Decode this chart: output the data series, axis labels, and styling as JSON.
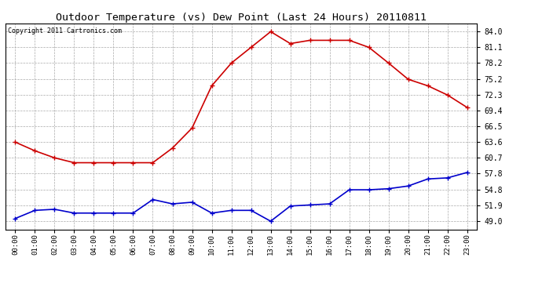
{
  "title": "Outdoor Temperature (vs) Dew Point (Last 24 Hours) 20110811",
  "copyright": "Copyright 2011 Cartronics.com",
  "x_labels": [
    "00:00",
    "01:00",
    "02:00",
    "03:00",
    "04:00",
    "05:00",
    "06:00",
    "07:00",
    "08:00",
    "09:00",
    "10:00",
    "11:00",
    "12:00",
    "13:00",
    "14:00",
    "15:00",
    "16:00",
    "17:00",
    "18:00",
    "19:00",
    "20:00",
    "21:00",
    "22:00",
    "23:00"
  ],
  "temp_values": [
    63.6,
    62.0,
    60.7,
    59.8,
    59.8,
    59.8,
    59.8,
    59.8,
    62.5,
    66.2,
    74.0,
    78.2,
    81.1,
    84.0,
    81.8,
    82.4,
    82.4,
    82.4,
    81.1,
    78.2,
    75.2,
    74.0,
    72.3,
    70.0
  ],
  "dew_values": [
    49.5,
    51.0,
    51.2,
    50.5,
    50.5,
    50.5,
    50.5,
    53.0,
    52.2,
    52.5,
    50.5,
    51.0,
    51.0,
    49.0,
    51.8,
    52.0,
    52.2,
    54.8,
    54.8,
    55.0,
    55.5,
    56.8,
    57.0,
    58.0
  ],
  "temp_color": "#cc0000",
  "dew_color": "#0000cc",
  "bg_color": "#ffffff",
  "plot_bg_color": "#ffffff",
  "grid_color": "#aaaaaa",
  "yticks": [
    49.0,
    51.9,
    54.8,
    57.8,
    60.7,
    63.6,
    66.5,
    69.4,
    72.3,
    75.2,
    78.2,
    81.1,
    84.0
  ],
  "ylim": [
    47.5,
    85.5
  ],
  "title_fontsize": 9.5,
  "copyright_fontsize": 6.0,
  "tick_fontsize": 6.5,
  "ytick_fontsize": 7.0
}
